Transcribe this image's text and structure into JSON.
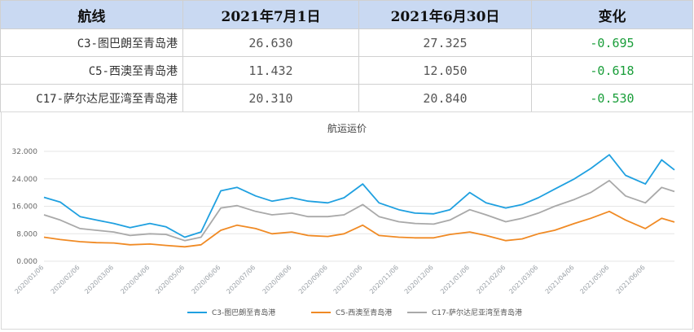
{
  "table": {
    "headers": [
      "航线",
      "2021年7月1日",
      "2021年6月30日",
      "变化"
    ],
    "rows": [
      {
        "route": "C3-图巴朗至青岛港",
        "jul1": "26.630",
        "jun30": "27.325",
        "change": "-0.695"
      },
      {
        "route": "C5-西澳至青岛港",
        "jul1": "11.432",
        "jun30": "12.050",
        "change": "-0.618"
      },
      {
        "route": "C17-萨尔达尼亚湾至青岛港",
        "jul1": "20.310",
        "jun30": "20.840",
        "change": "-0.530"
      }
    ]
  },
  "chart_data": {
    "type": "line",
    "title": "航运运价",
    "ylim": [
      0,
      32
    ],
    "yticks": [
      "0.000",
      "8.000",
      "16.000",
      "24.000",
      "32.000"
    ],
    "xticks": [
      "2020/01/06",
      "2020/02/06",
      "2020/03/06",
      "2020/04/06",
      "2020/05/06",
      "2020/06/06",
      "2020/07/06",
      "2020/08/06",
      "2020/09/06",
      "2020/10/06",
      "2020/11/06",
      "2020/12/06",
      "2021/01/06",
      "2021/02/06",
      "2021/03/06",
      "2021/04/06",
      "2021/05/06",
      "2021/06/06"
    ],
    "x": [
      "2020/01/06",
      "2020/01/20",
      "2020/02/06",
      "2020/02/20",
      "2020/03/06",
      "2020/03/20",
      "2020/04/06",
      "2020/04/20",
      "2020/05/06",
      "2020/05/20",
      "2020/06/06",
      "2020/06/20",
      "2020/07/06",
      "2020/07/20",
      "2020/08/06",
      "2020/08/20",
      "2020/09/06",
      "2020/09/20",
      "2020/10/06",
      "2020/10/20",
      "2020/11/06",
      "2020/11/20",
      "2020/12/06",
      "2020/12/20",
      "2021/01/06",
      "2021/01/20",
      "2021/02/06",
      "2021/02/20",
      "2021/03/06",
      "2021/03/20",
      "2021/04/06",
      "2021/04/20",
      "2021/05/06",
      "2021/05/20",
      "2021/06/06",
      "2021/06/20",
      "2021/07/01"
    ],
    "series": [
      {
        "name": "C3-图巴朗至青岛港",
        "color": "#1fa0e0",
        "values": [
          18.6,
          17.2,
          13.0,
          12.0,
          11.0,
          9.8,
          11.0,
          10.0,
          7.0,
          8.5,
          20.5,
          21.5,
          19.0,
          17.5,
          18.5,
          17.5,
          17.0,
          18.5,
          22.5,
          17.0,
          15.0,
          14.0,
          13.8,
          15.0,
          20.0,
          17.0,
          15.5,
          16.5,
          18.5,
          21.0,
          24.0,
          27.0,
          31.0,
          25.0,
          22.5,
          29.5,
          26.6
        ]
      },
      {
        "name": "C5-西澳至青岛港",
        "color": "#f08a24",
        "values": [
          7.0,
          6.3,
          5.7,
          5.4,
          5.3,
          4.8,
          5.0,
          4.6,
          4.2,
          4.8,
          9.0,
          10.5,
          9.5,
          8.0,
          8.5,
          7.5,
          7.2,
          8.0,
          10.5,
          7.5,
          7.0,
          6.8,
          6.8,
          7.8,
          8.5,
          7.5,
          6.0,
          6.5,
          8.0,
          9.0,
          11.0,
          12.5,
          14.5,
          12.0,
          9.5,
          12.5,
          11.4
        ]
      },
      {
        "name": "C17-萨尔达尼亚湾至青岛港",
        "color": "#a9a9a9",
        "values": [
          13.5,
          12.0,
          9.5,
          9.0,
          8.5,
          7.5,
          8.0,
          7.8,
          6.0,
          7.0,
          15.5,
          16.2,
          14.5,
          13.5,
          14.0,
          13.0,
          13.0,
          13.5,
          16.5,
          13.0,
          11.5,
          11.0,
          10.8,
          12.0,
          15.0,
          13.5,
          11.5,
          12.5,
          14.0,
          16.0,
          18.0,
          20.0,
          23.5,
          19.0,
          17.0,
          21.5,
          20.3
        ]
      }
    ]
  }
}
